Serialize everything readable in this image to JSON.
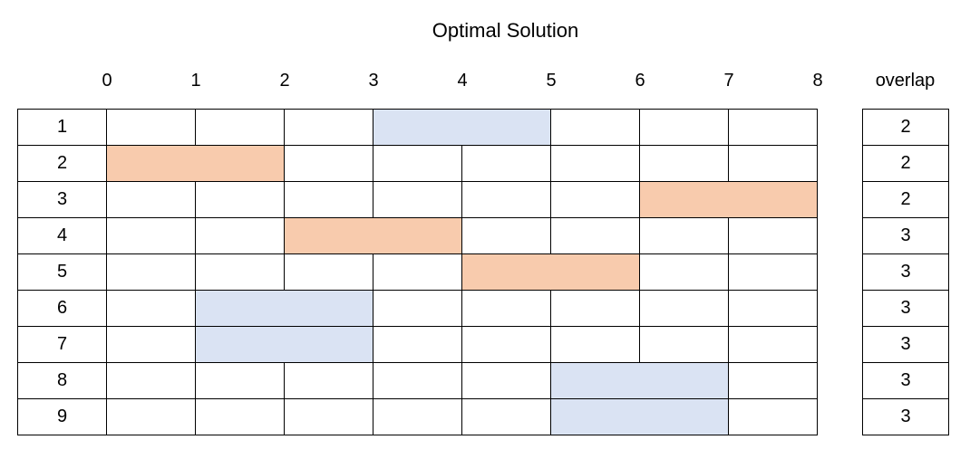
{
  "title": "Optimal Solution",
  "ticks": [
    "0",
    "1",
    "2",
    "3",
    "4",
    "5",
    "6",
    "7",
    "8"
  ],
  "overlap_header": "overlap",
  "colors": {
    "blue": "#dae3f3",
    "orange": "#f8cbad"
  },
  "rows": [
    {
      "label": "1",
      "start": 3,
      "end": 5,
      "color": "blue",
      "overlap": "2"
    },
    {
      "label": "2",
      "start": 0,
      "end": 2,
      "color": "orange",
      "overlap": "2"
    },
    {
      "label": "3",
      "start": 6,
      "end": 8,
      "color": "orange",
      "overlap": "2"
    },
    {
      "label": "4",
      "start": 2,
      "end": 4,
      "color": "orange",
      "overlap": "3"
    },
    {
      "label": "5",
      "start": 4,
      "end": 6,
      "color": "orange",
      "overlap": "3"
    },
    {
      "label": "6",
      "start": 1,
      "end": 3,
      "color": "blue",
      "overlap": "3"
    },
    {
      "label": "7",
      "start": 1,
      "end": 3,
      "color": "blue",
      "overlap": "3"
    },
    {
      "label": "8",
      "start": 5,
      "end": 7,
      "color": "blue",
      "overlap": "3"
    },
    {
      "label": "9",
      "start": 5,
      "end": 7,
      "color": "blue",
      "overlap": "3"
    }
  ]
}
